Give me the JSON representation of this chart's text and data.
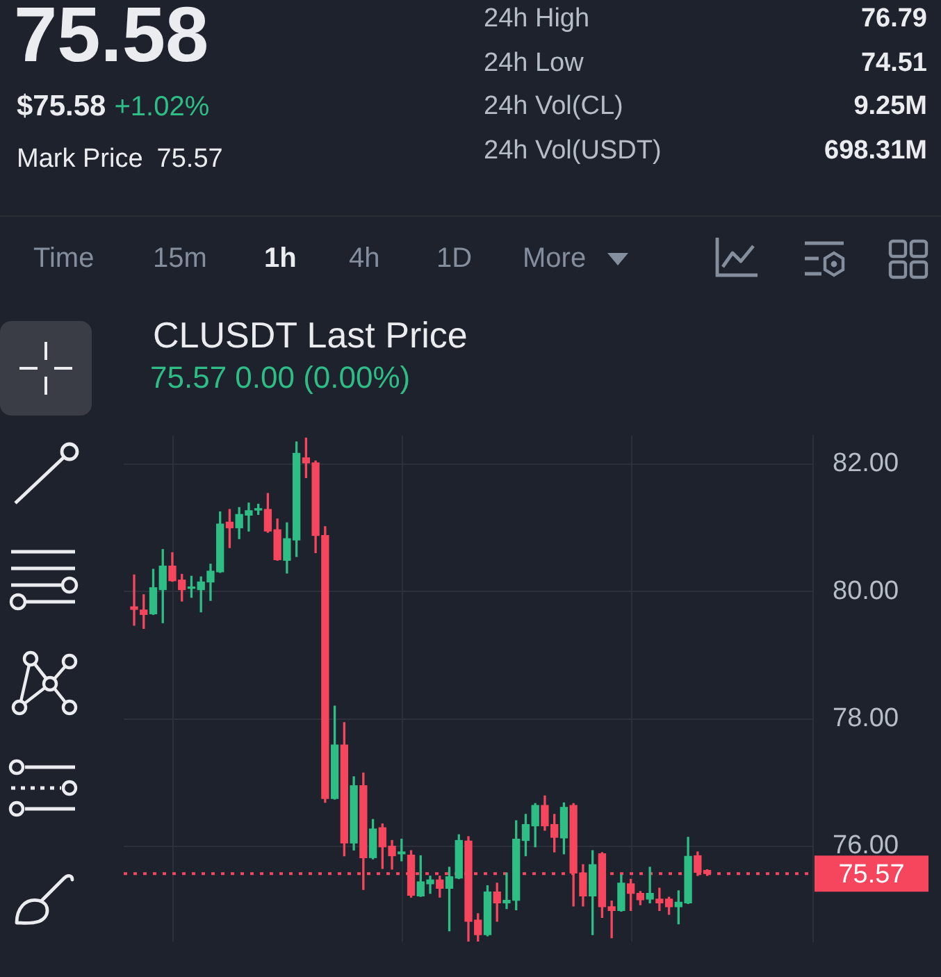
{
  "chart_data": {
    "type": "candlestick",
    "title": "CLUSDT Last Price",
    "subtitle": "75.57 0.00 (0.00%)",
    "categories": [
      null,
      null,
      null,
      null,
      null,
      null,
      null,
      null,
      null,
      null,
      null,
      null,
      null,
      null,
      null,
      null,
      null,
      null,
      null,
      null,
      null,
      null,
      null,
      null,
      null,
      null,
      null,
      null,
      null,
      null,
      null,
      null,
      null,
      null,
      null,
      null,
      null,
      null,
      null,
      null,
      null,
      null,
      null,
      null,
      null,
      null,
      null,
      null,
      null,
      null,
      null,
      null,
      null,
      null,
      null,
      null,
      null,
      null,
      null,
      null,
      null
    ],
    "ohlc": [
      [
        79.76,
        80.26,
        79.47,
        79.72
      ],
      [
        79.71,
        79.95,
        79.42,
        79.64
      ],
      [
        79.65,
        80.35,
        79.64,
        80.06
      ],
      [
        80.03,
        80.66,
        79.51,
        80.4
      ],
      [
        80.4,
        80.61,
        80.16,
        80.17
      ],
      [
        80.18,
        80.27,
        79.85,
        80.03
      ],
      [
        80.05,
        80.24,
        79.91,
        80.07
      ],
      [
        80.03,
        80.23,
        79.68,
        80.15
      ],
      [
        80.15,
        80.43,
        79.86,
        80.32
      ],
      [
        80.31,
        81.25,
        80.3,
        81.06
      ],
      [
        81.09,
        81.29,
        80.69,
        81.0
      ],
      [
        81.0,
        81.32,
        80.83,
        81.21
      ],
      [
        81.2,
        81.39,
        80.95,
        81.27
      ],
      [
        81.28,
        81.37,
        81.21,
        81.3
      ],
      [
        81.29,
        81.54,
        80.93,
        80.95
      ],
      [
        80.97,
        81.14,
        80.49,
        80.5
      ],
      [
        80.49,
        81.08,
        80.29,
        80.83
      ],
      [
        80.81,
        82.35,
        80.55,
        82.17
      ],
      [
        82.1,
        82.41,
        81.79,
        82.02
      ],
      [
        82.02,
        82.05,
        80.61,
        80.88
      ],
      [
        80.88,
        81.02,
        76.69,
        76.75
      ],
      [
        76.75,
        78.2,
        76.74,
        77.59
      ],
      [
        77.59,
        77.94,
        75.85,
        76.05
      ],
      [
        76.05,
        77.09,
        75.94,
        76.95
      ],
      [
        76.95,
        77.15,
        75.32,
        75.82
      ],
      [
        75.82,
        76.42,
        75.8,
        76.27
      ],
      [
        76.29,
        76.35,
        75.65,
        75.99
      ],
      [
        76.0,
        76.09,
        75.64,
        75.85
      ],
      [
        75.88,
        76.11,
        75.77,
        75.91
      ],
      [
        75.86,
        75.93,
        75.2,
        75.23
      ],
      [
        75.22,
        75.85,
        75.21,
        75.44
      ],
      [
        75.41,
        75.53,
        75.26,
        75.47
      ],
      [
        75.47,
        75.53,
        75.2,
        75.34
      ],
      [
        75.34,
        75.67,
        74.67,
        75.52
      ],
      [
        75.5,
        76.18,
        75.49,
        76.09
      ],
      [
        76.08,
        76.15,
        74.51,
        74.82
      ],
      [
        74.84,
        74.94,
        74.51,
        74.61
      ],
      [
        74.61,
        75.38,
        74.59,
        75.28
      ],
      [
        75.28,
        75.42,
        74.82,
        75.11
      ],
      [
        75.11,
        75.58,
        75.02,
        75.15
      ],
      [
        75.15,
        76.4,
        75.0,
        76.11
      ],
      [
        76.09,
        76.5,
        75.85,
        76.34
      ],
      [
        76.32,
        76.67,
        75.99,
        76.64
      ],
      [
        76.64,
        76.79,
        76.25,
        76.32
      ],
      [
        76.34,
        76.5,
        75.91,
        76.14
      ],
      [
        76.13,
        76.68,
        75.88,
        76.61
      ],
      [
        76.64,
        76.67,
        75.06,
        75.58
      ],
      [
        75.58,
        75.71,
        75.06,
        75.22
      ],
      [
        75.22,
        75.93,
        74.61,
        75.71
      ],
      [
        75.88,
        75.9,
        74.88,
        75.05
      ],
      [
        75.05,
        75.14,
        74.56,
        74.99
      ],
      [
        74.99,
        75.55,
        74.98,
        75.42
      ],
      [
        75.41,
        75.48,
        74.99,
        75.26
      ],
      [
        75.26,
        75.29,
        75.08,
        75.16
      ],
      [
        75.17,
        75.67,
        75.11,
        75.26
      ],
      [
        75.17,
        75.34,
        74.99,
        75.11
      ],
      [
        75.17,
        75.2,
        74.93,
        75.05
      ],
      [
        75.05,
        75.3,
        74.78,
        75.12
      ],
      [
        75.11,
        76.14,
        75.1,
        75.84
      ],
      [
        75.85,
        75.91,
        75.54,
        75.59
      ],
      [
        75.62,
        75.63,
        75.54,
        75.57
      ]
    ],
    "colors": [
      "#f6465d",
      "#f6465d",
      "#2ebd85",
      "#2ebd85",
      "#f6465d",
      "#f6465d",
      "#2ebd85",
      "#2ebd85",
      "#2ebd85",
      "#2ebd85",
      "#f6465d",
      "#2ebd85",
      "#2ebd85",
      "#2ebd85",
      "#f6465d",
      "#f6465d",
      "#2ebd85",
      "#2ebd85",
      "#f6465d",
      "#f6465d",
      "#f6465d",
      "#2ebd85",
      "#f6465d",
      "#2ebd85",
      "#f6465d",
      "#2ebd85",
      "#f6465d",
      "#f6465d",
      "#2ebd85",
      "#f6465d",
      "#2ebd85",
      "#2ebd85",
      "#f6465d",
      "#2ebd85",
      "#2ebd85",
      "#f6465d",
      "#f6465d",
      "#2ebd85",
      "#f6465d",
      "#2ebd85",
      "#2ebd85",
      "#2ebd85",
      "#2ebd85",
      "#f6465d",
      "#f6465d",
      "#2ebd85",
      "#f6465d",
      "#f6465d",
      "#2ebd85",
      "#f6465d",
      "#f6465d",
      "#2ebd85",
      "#f6465d",
      "#f6465d",
      "#2ebd85",
      "#f6465d",
      "#f6465d",
      "#2ebd85",
      "#2ebd85",
      "#f6465d",
      "#f6465d"
    ],
    "ylim": [
      74.5,
      82.45
    ],
    "yticks": [
      {
        "value": 82,
        "label": "82.00"
      },
      {
        "value": 80,
        "label": "80.00"
      },
      {
        "value": 78,
        "label": "78.00"
      },
      {
        "value": 76,
        "label": "76.00"
      }
    ],
    "grid": true,
    "tick_labels": "y",
    "ref_lines": [
      {
        "axis": "y",
        "value": 75.57,
        "label": "75.57",
        "color": "#f6465d",
        "line_style": "dotted"
      }
    ],
    "annotations": [
      "75.58",
      "$75.58",
      "+1.02%",
      "Mark Price",
      "75.57",
      "24h High",
      "76.79",
      "24h Low",
      "74.51",
      "24h Vol(CL)",
      "9.25M",
      "24h Vol(USDT)",
      "698.31M",
      "Time",
      "15m",
      "1h",
      "4h",
      "1D",
      "More"
    ]
  }
}
